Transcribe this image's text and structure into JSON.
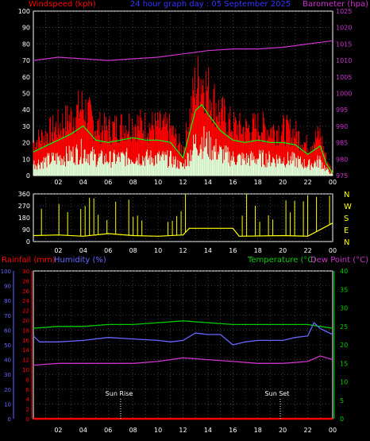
{
  "header": {
    "left_label": "Windspeed (kph)",
    "center_label": "24 hour graph day : 05 September 2025",
    "right_label": "Barometer (hpa)"
  },
  "colors": {
    "windspeed": "#ff0000",
    "gust_avg": "#00ff00",
    "wind_light": "#d8ffd8",
    "barometer": "#cc33cc",
    "direction": "#ffff00",
    "rainfall": "#ff0000",
    "humidity": "#6666ff",
    "temperature": "#00cc00",
    "dewpoint": "#cc33cc",
    "header_blue": "#3333ff",
    "grid": "#666666",
    "axis_text": "#ffffff"
  },
  "x_ticks": [
    "02",
    "04",
    "06",
    "08",
    "10",
    "12",
    "14",
    "16",
    "18",
    "20",
    "22",
    "00"
  ],
  "sun": {
    "rise_label": "Sun Rise",
    "set_label": "Sun Set",
    "rise_hour": 7,
    "set_hour": 19.8
  },
  "chart_data": [
    {
      "type": "line",
      "name_key": "wind",
      "y_left": {
        "label": "Windspeed (kph)",
        "range": [
          0,
          100
        ],
        "ticks": [
          0,
          10,
          20,
          30,
          40,
          50,
          60,
          70,
          80,
          90,
          100
        ]
      },
      "y_right": {
        "label": "Barometer (hpa)",
        "range": [
          975,
          1025
        ],
        "ticks": [
          975,
          980,
          985,
          990,
          995,
          1000,
          1005,
          1010,
          1015,
          1020,
          1025
        ]
      },
      "x_range": [
        0,
        24
      ],
      "series": [
        {
          "name": "Windspeed (kph)",
          "color_key": "windspeed",
          "x": [
            0,
            1,
            2,
            3,
            4,
            5,
            6,
            7,
            8,
            9,
            10,
            11,
            12,
            12.5,
            13,
            13.5,
            14,
            14.5,
            15,
            16,
            17,
            18,
            19,
            20,
            21,
            22,
            23,
            23.5,
            24
          ],
          "y": [
            20,
            25,
            30,
            35,
            42,
            30,
            28,
            30,
            32,
            30,
            30,
            28,
            15,
            35,
            55,
            60,
            52,
            45,
            38,
            30,
            28,
            30,
            28,
            28,
            26,
            18,
            25,
            10,
            2
          ]
        },
        {
          "name": "Barometer (hpa)",
          "color_key": "barometer",
          "axis": "right",
          "x": [
            0,
            2,
            4,
            6,
            8,
            10,
            12,
            14,
            16,
            18,
            20,
            22,
            24
          ],
          "y": [
            1010,
            1011,
            1010.5,
            1010,
            1010.5,
            1011,
            1012,
            1013,
            1013.5,
            1013.5,
            1014,
            1015,
            1016
          ]
        }
      ]
    },
    {
      "type": "line",
      "name_key": "direction",
      "y_left": {
        "range": [
          0,
          360
        ],
        "ticks": [
          0,
          90,
          180,
          270,
          360
        ]
      },
      "y_right_labels": [
        "N",
        "W",
        "S",
        "E",
        "N"
      ],
      "x_range": [
        0,
        24
      ],
      "series": [
        {
          "name": "Wind direction",
          "color_key": "direction",
          "x": [
            0,
            2,
            4,
            6,
            8,
            10,
            12,
            12.5,
            16,
            16.5,
            20,
            22,
            24
          ],
          "y": [
            45,
            50,
            40,
            60,
            45,
            40,
            50,
            100,
            100,
            40,
            45,
            40,
            140
          ]
        }
      ]
    },
    {
      "type": "line",
      "name_key": "lower",
      "y_far_left": {
        "label": "Humidity (%)",
        "range": [
          0,
          100
        ],
        "ticks": [
          0,
          10,
          20,
          30,
          40,
          50,
          60,
          70,
          80,
          90,
          100
        ]
      },
      "y_left": {
        "label": "Rainfall (mm)",
        "range": [
          0,
          30
        ],
        "ticks": [
          0,
          2,
          4,
          6,
          8,
          10,
          12,
          14,
          16,
          18,
          20,
          22,
          24,
          26,
          28,
          30
        ]
      },
      "y_right": {
        "label": "Temperature (°C)",
        "range": [
          0,
          40
        ],
        "ticks": [
          0,
          5,
          10,
          15,
          20,
          25,
          30,
          35,
          40
        ]
      },
      "right_label_2": "Dew Point (°C)",
      "x_range": [
        0,
        24
      ],
      "series": [
        {
          "name": "Temperature (°C)",
          "color_key": "temperature",
          "axis": "right",
          "x": [
            0,
            2,
            4,
            6,
            8,
            10,
            12,
            14,
            16,
            18,
            20,
            22,
            23,
            24
          ],
          "y": [
            24.5,
            25,
            25,
            25.5,
            25.5,
            26,
            26.5,
            26,
            25.5,
            25.5,
            25.5,
            25.5,
            25,
            24.5
          ]
        },
        {
          "name": "Humidity (%)",
          "color_key": "humidity",
          "axis": "far_left",
          "x": [
            0,
            0.5,
            2,
            4,
            6,
            8,
            10,
            11,
            12,
            13,
            14,
            15,
            16,
            17,
            18,
            20,
            21,
            22,
            22.5,
            23,
            24
          ],
          "y": [
            56,
            52,
            52,
            53,
            55,
            54,
            53,
            52,
            53,
            58,
            57,
            57,
            50,
            52,
            53,
            53,
            55,
            56,
            65,
            61,
            57
          ]
        },
        {
          "name": "Dew Point (°C)",
          "color_key": "dewpoint",
          "axis": "right",
          "x": [
            0,
            2,
            4,
            6,
            8,
            10,
            12,
            14,
            16,
            18,
            20,
            22,
            23,
            24
          ],
          "y": [
            14.5,
            15,
            15,
            15,
            15,
            15.5,
            16.5,
            16,
            15.5,
            15,
            15,
            15.5,
            17,
            16
          ]
        },
        {
          "name": "Rainfall (mm)",
          "color_key": "rainfall",
          "axis": "left",
          "x": [
            0,
            24
          ],
          "y": [
            0,
            0
          ]
        }
      ]
    }
  ]
}
